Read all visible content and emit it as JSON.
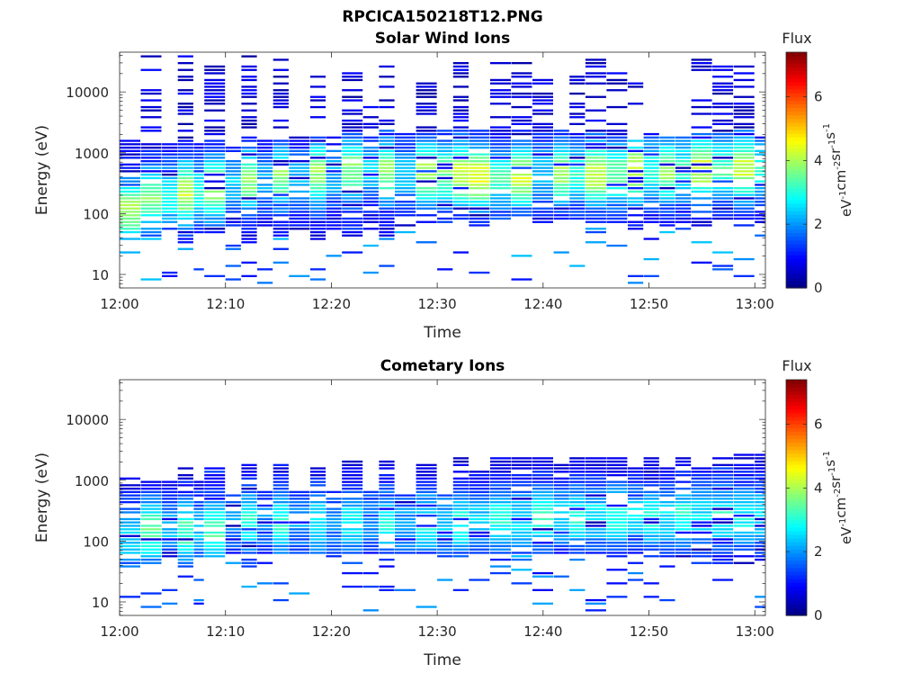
{
  "figure_title": "RPCICA150218T12.PNG",
  "colorscale": {
    "label": "Flux",
    "units_label": "eV-1cm-2sr-1s-1",
    "tick_labels": [
      "0",
      "2",
      "4",
      "6"
    ],
    "min": 0,
    "max": 7.4,
    "colormap": "jet"
  },
  "chart_data": [
    {
      "type": "heatmap",
      "title": "Solar Wind Ions",
      "xlabel": "Time",
      "ylabel": "Energy (eV)",
      "x_tick_labels": [
        "12:00",
        "12:10",
        "12:20",
        "12:30",
        "12:40",
        "12:50",
        "13:00"
      ],
      "xlim": [
        "12:00",
        "13:01"
      ],
      "y_scale": "log",
      "y_tick_labels": [
        "10",
        "100",
        "1000",
        "10000"
      ],
      "ylim": [
        6,
        45000
      ],
      "columns": [
        {
          "start": "12:00.0",
          "end": "12:02.0",
          "low": 45,
          "high": 1500,
          "peak_energy": 110,
          "peak": 4.0,
          "sparse_high": 1700
        },
        {
          "start": "12:02.0",
          "end": "12:04.0",
          "low": 40,
          "high": 1500,
          "peak_energy": 180,
          "peak": 3.8,
          "sparse_high": 40000
        },
        {
          "start": "12:04.0",
          "end": "12:05.5",
          "low": 50,
          "high": 1400,
          "peak_energy": 200,
          "peak": 3.0,
          "sparse_high": 1500
        },
        {
          "start": "12:05.5",
          "end": "12:07.0",
          "low": 30,
          "high": 1600,
          "peak_energy": 220,
          "peak": 4.2,
          "sparse_high": 40000
        },
        {
          "start": "12:07.0",
          "end": "12:08.0",
          "low": 45,
          "high": 1400,
          "peak_energy": 220,
          "peak": 3.0,
          "sparse_high": 1500
        },
        {
          "start": "12:08.0",
          "end": "12:10.0",
          "low": 45,
          "high": 1700,
          "peak_energy": 250,
          "peak": 4.0,
          "sparse_high": 38000
        },
        {
          "start": "12:10.0",
          "end": "12:11.5",
          "low": 60,
          "high": 1500,
          "peak_energy": 300,
          "peak": 2.4,
          "sparse_high": 1600
        },
        {
          "start": "12:11.5",
          "end": "12:13.0",
          "low": 30,
          "high": 1900,
          "peak_energy": 350,
          "peak": 3.8,
          "sparse_high": 40000
        },
        {
          "start": "12:13.0",
          "end": "12:14.5",
          "low": 60,
          "high": 1600,
          "peak_energy": 350,
          "peak": 2.2,
          "sparse_high": 1700
        },
        {
          "start": "12:14.5",
          "end": "12:16.0",
          "low": 40,
          "high": 1800,
          "peak_energy": 400,
          "peak": 3.8,
          "sparse_high": 40000
        },
        {
          "start": "12:16.0",
          "end": "12:18.0",
          "low": 50,
          "high": 1700,
          "peak_energy": 400,
          "peak": 2.4,
          "sparse_high": 2000
        },
        {
          "start": "12:18.0",
          "end": "12:19.5",
          "low": 35,
          "high": 2000,
          "peak_energy": 450,
          "peak": 3.9,
          "sparse_high": 25000
        },
        {
          "start": "12:19.5",
          "end": "12:21.0",
          "low": 50,
          "high": 1800,
          "peak_energy": 450,
          "peak": 2.3,
          "sparse_high": 2000
        },
        {
          "start": "12:21.0",
          "end": "12:23.0",
          "low": 40,
          "high": 2100,
          "peak_energy": 500,
          "peak": 3.8,
          "sparse_high": 25000
        },
        {
          "start": "12:23.0",
          "end": "12:24.5",
          "low": 50,
          "high": 2000,
          "peak_energy": 500,
          "peak": 2.4,
          "sparse_high": 6000
        },
        {
          "start": "12:24.5",
          "end": "12:26.0",
          "low": 40,
          "high": 2500,
          "peak_energy": 500,
          "peak": 3.9,
          "sparse_high": 35000
        },
        {
          "start": "12:26.0",
          "end": "12:28.0",
          "low": 60,
          "high": 2200,
          "peak_energy": 450,
          "peak": 2.4,
          "sparse_high": 2500
        },
        {
          "start": "12:28.0",
          "end": "12:30.0",
          "low": 70,
          "high": 2200,
          "peak_energy": 450,
          "peak": 4.1,
          "sparse_high": 15000
        },
        {
          "start": "12:30.0",
          "end": "12:31.5",
          "low": 70,
          "high": 2300,
          "peak_energy": 450,
          "peak": 3.7,
          "sparse_high": 2500
        },
        {
          "start": "12:31.5",
          "end": "12:33.0",
          "low": 80,
          "high": 2500,
          "peak_energy": 450,
          "peak": 4.4,
          "sparse_high": 30000
        },
        {
          "start": "12:33.0",
          "end": "12:35.0",
          "low": 70,
          "high": 2400,
          "peak_energy": 400,
          "peak": 4.5,
          "sparse_high": 2500
        },
        {
          "start": "12:35.0",
          "end": "12:37.0",
          "low": 90,
          "high": 2200,
          "peak_energy": 400,
          "peak": 3.2,
          "sparse_high": 30000
        },
        {
          "start": "12:37.0",
          "end": "12:39.0",
          "low": 90,
          "high": 2400,
          "peak_energy": 400,
          "peak": 4.2,
          "sparse_high": 30000
        },
        {
          "start": "12:39.0",
          "end": "12:41.0",
          "low": 80,
          "high": 2200,
          "peak_energy": 450,
          "peak": 2.4,
          "sparse_high": 25000
        },
        {
          "start": "12:41.0",
          "end": "12:42.5",
          "low": 80,
          "high": 2300,
          "peak_energy": 450,
          "peak": 3.9,
          "sparse_high": 2500
        },
        {
          "start": "12:42.5",
          "end": "12:44.0",
          "low": 80,
          "high": 2000,
          "peak_energy": 450,
          "peak": 3.0,
          "sparse_high": 25000
        },
        {
          "start": "12:44.0",
          "end": "12:46.0",
          "low": 70,
          "high": 2200,
          "peak_energy": 450,
          "peak": 4.2,
          "sparse_high": 35000
        },
        {
          "start": "12:46.0",
          "end": "12:48.0",
          "low": 70,
          "high": 1800,
          "peak_energy": 450,
          "peak": 3.5,
          "sparse_high": 30000
        },
        {
          "start": "12:48.0",
          "end": "12:49.5",
          "low": 60,
          "high": 2200,
          "peak_energy": 500,
          "peak": 4.3,
          "sparse_high": 15000
        },
        {
          "start": "12:49.5",
          "end": "12:51.0",
          "low": 70,
          "high": 1900,
          "peak_energy": 500,
          "peak": 3.0,
          "sparse_high": 2500
        },
        {
          "start": "12:51.0",
          "end": "12:52.5",
          "low": 60,
          "high": 1800,
          "peak_energy": 500,
          "peak": 4.0,
          "sparse_high": 2000
        },
        {
          "start": "12:52.5",
          "end": "12:54.0",
          "low": 70,
          "high": 2000,
          "peak_energy": 500,
          "peak": 3.2,
          "sparse_high": 2500
        },
        {
          "start": "12:54.0",
          "end": "12:56.0",
          "low": 60,
          "high": 2500,
          "peak_energy": 550,
          "peak": 4.3,
          "sparse_high": 40000
        },
        {
          "start": "12:56.0",
          "end": "12:58.0",
          "low": 70,
          "high": 2200,
          "peak_energy": 550,
          "peak": 3.4,
          "sparse_high": 35000
        },
        {
          "start": "12:58.0",
          "end": "13:00.0",
          "low": 70,
          "high": 2300,
          "peak_energy": 550,
          "peak": 4.2,
          "sparse_high": 30000
        },
        {
          "start": "13:00.0",
          "end": "13:01.0",
          "low": 70,
          "high": 1900,
          "peak_energy": 550,
          "peak": 3.0,
          "sparse_high": 2000
        }
      ]
    },
    {
      "type": "heatmap",
      "title": "Cometary Ions",
      "xlabel": "Time",
      "ylabel": "Energy (eV)",
      "x_tick_labels": [
        "12:00",
        "12:10",
        "12:20",
        "12:30",
        "12:40",
        "12:50",
        "13:00"
      ],
      "xlim": [
        "12:00",
        "13:01"
      ],
      "y_scale": "log",
      "y_tick_labels": [
        "10",
        "100",
        "1000",
        "10000"
      ],
      "ylim": [
        6,
        45000
      ],
      "columns": [
        {
          "start": "12:00.0",
          "end": "12:02.0",
          "low": 40,
          "high": 1100,
          "peak_energy": 120,
          "peak": 2.6
        },
        {
          "start": "12:02.0",
          "end": "12:04.0",
          "low": 40,
          "high": 1300,
          "peak_energy": 150,
          "peak": 3.5
        },
        {
          "start": "12:04.0",
          "end": "12:05.5",
          "low": 50,
          "high": 1200,
          "peak_energy": 150,
          "peak": 2.4
        },
        {
          "start": "12:05.5",
          "end": "12:07.0",
          "low": 30,
          "high": 2000,
          "peak_energy": 150,
          "peak": 3.4
        },
        {
          "start": "12:07.0",
          "end": "12:08.0",
          "low": 50,
          "high": 1000,
          "peak_energy": 150,
          "peak": 2.4
        },
        {
          "start": "12:08.0",
          "end": "12:10.0",
          "low": 50,
          "high": 1700,
          "peak_energy": 150,
          "peak": 3.3
        },
        {
          "start": "12:10.0",
          "end": "12:11.5",
          "low": 60,
          "high": 600,
          "peak_energy": 200,
          "peak": 2.0
        },
        {
          "start": "12:11.5",
          "end": "12:13.0",
          "low": 40,
          "high": 1800,
          "peak_energy": 200,
          "peak": 3.0
        },
        {
          "start": "12:13.0",
          "end": "12:14.5",
          "low": 60,
          "high": 800,
          "peak_energy": 200,
          "peak": 2.0
        },
        {
          "start": "12:14.5",
          "end": "12:16.0",
          "low": 60,
          "high": 1800,
          "peak_energy": 200,
          "peak": 3.0
        },
        {
          "start": "12:16.0",
          "end": "12:18.0",
          "low": 60,
          "high": 700,
          "peak_energy": 200,
          "peak": 2.0
        },
        {
          "start": "12:18.0",
          "end": "12:19.5",
          "low": 60,
          "high": 1600,
          "peak_energy": 200,
          "peak": 2.8
        },
        {
          "start": "12:19.5",
          "end": "12:21.0",
          "low": 50,
          "high": 700,
          "peak_energy": 200,
          "peak": 2.0
        },
        {
          "start": "12:21.0",
          "end": "12:23.0",
          "low": 60,
          "high": 2200,
          "peak_energy": 200,
          "peak": 2.8
        },
        {
          "start": "12:23.0",
          "end": "12:24.5",
          "low": 60,
          "high": 700,
          "peak_energy": 200,
          "peak": 2.0
        },
        {
          "start": "12:24.5",
          "end": "12:26.0",
          "low": 60,
          "high": 2200,
          "peak_energy": 200,
          "peak": 2.9
        },
        {
          "start": "12:26.0",
          "end": "12:28.0",
          "low": 60,
          "high": 700,
          "peak_energy": 180,
          "peak": 2.2
        },
        {
          "start": "12:28.0",
          "end": "12:30.0",
          "low": 60,
          "high": 1900,
          "peak_energy": 200,
          "peak": 2.9
        },
        {
          "start": "12:30.0",
          "end": "12:31.5",
          "low": 50,
          "high": 600,
          "peak_energy": 200,
          "peak": 2.4
        },
        {
          "start": "12:31.5",
          "end": "12:33.0",
          "low": 50,
          "high": 2600,
          "peak_energy": 200,
          "peak": 3.0
        },
        {
          "start": "12:33.0",
          "end": "12:35.0",
          "low": 60,
          "high": 1500,
          "peak_energy": 200,
          "peak": 2.6
        },
        {
          "start": "12:35.0",
          "end": "12:37.0",
          "low": 60,
          "high": 2600,
          "peak_energy": 220,
          "peak": 3.0
        },
        {
          "start": "12:37.0",
          "end": "12:39.0",
          "low": 60,
          "high": 2500,
          "peak_energy": 220,
          "peak": 2.6
        },
        {
          "start": "12:39.0",
          "end": "12:41.0",
          "low": 60,
          "high": 2500,
          "peak_energy": 250,
          "peak": 3.0
        },
        {
          "start": "12:41.0",
          "end": "12:42.5",
          "low": 60,
          "high": 2000,
          "peak_energy": 250,
          "peak": 2.6
        },
        {
          "start": "12:42.5",
          "end": "12:44.0",
          "low": 60,
          "high": 2400,
          "peak_energy": 250,
          "peak": 3.0
        },
        {
          "start": "12:44.0",
          "end": "12:46.0",
          "low": 60,
          "high": 2600,
          "peak_energy": 250,
          "peak": 2.7
        },
        {
          "start": "12:46.0",
          "end": "12:48.0",
          "low": 50,
          "high": 2400,
          "peak_energy": 250,
          "peak": 3.0
        },
        {
          "start": "12:48.0",
          "end": "12:49.5",
          "low": 50,
          "high": 1700,
          "peak_energy": 250,
          "peak": 2.6
        },
        {
          "start": "12:49.5",
          "end": "12:51.0",
          "low": 50,
          "high": 2600,
          "peak_energy": 250,
          "peak": 3.0
        },
        {
          "start": "12:51.0",
          "end": "12:52.5",
          "low": 50,
          "high": 1600,
          "peak_energy": 250,
          "peak": 2.6
        },
        {
          "start": "12:52.5",
          "end": "12:54.0",
          "low": 50,
          "high": 2300,
          "peak_energy": 250,
          "peak": 3.0
        },
        {
          "start": "12:54.0",
          "end": "12:56.0",
          "low": 50,
          "high": 1700,
          "peak_energy": 250,
          "peak": 2.6
        },
        {
          "start": "12:56.0",
          "end": "12:58.0",
          "low": 40,
          "high": 2600,
          "peak_energy": 250,
          "peak": 3.0
        },
        {
          "start": "12:58.0",
          "end": "13:00.0",
          "low": 40,
          "high": 2700,
          "peak_energy": 250,
          "peak": 2.8
        },
        {
          "start": "13:00.0",
          "end": "13:01.0",
          "low": 40,
          "high": 2900,
          "peak_energy": 250,
          "peak": 2.6
        }
      ]
    }
  ]
}
